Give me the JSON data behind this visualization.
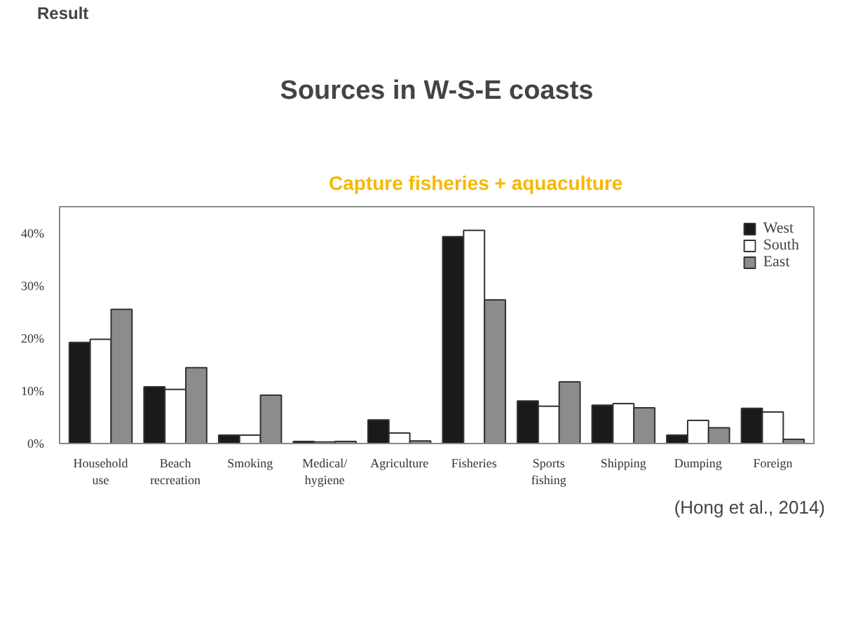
{
  "chart_data": {
    "type": "bar",
    "title": "Sources in W-S-E coasts",
    "categories": [
      "Household use",
      "Beach recreation",
      "Smoking",
      "Medical/ hygiene",
      "Agriculture",
      "Fisheries",
      "Sports fishing",
      "Shipping",
      "Dumping",
      "Foreign"
    ],
    "series": [
      {
        "name": "West",
        "color": "#1a1a1a",
        "values": [
          19.2,
          10.8,
          1.6,
          0.4,
          4.5,
          39.3,
          8.1,
          7.3,
          1.6,
          6.7
        ]
      },
      {
        "name": "South",
        "color": "#ffffff",
        "values": [
          19.8,
          10.3,
          1.6,
          0.3,
          2.0,
          40.5,
          7.1,
          7.6,
          4.4,
          6.0
        ]
      },
      {
        "name": "East",
        "color": "#8c8c8c",
        "values": [
          25.5,
          14.4,
          9.2,
          0.4,
          0.5,
          27.3,
          11.7,
          6.8,
          3.0,
          0.8
        ]
      }
    ],
    "ylim": [
      0,
      45
    ],
    "yticks": [
      {
        "value": 0,
        "label": "0%"
      },
      {
        "value": 10,
        "label": "10%"
      },
      {
        "value": 20,
        "label": "20%"
      },
      {
        "value": 30,
        "label": "30%"
      },
      {
        "value": 40,
        "label": "40%"
      }
    ],
    "grid": false,
    "legend": "top right",
    "annotations": [
      "Result",
      "Capture fisheries + aquaculture",
      "(Hong et al., 2014)"
    ]
  }
}
